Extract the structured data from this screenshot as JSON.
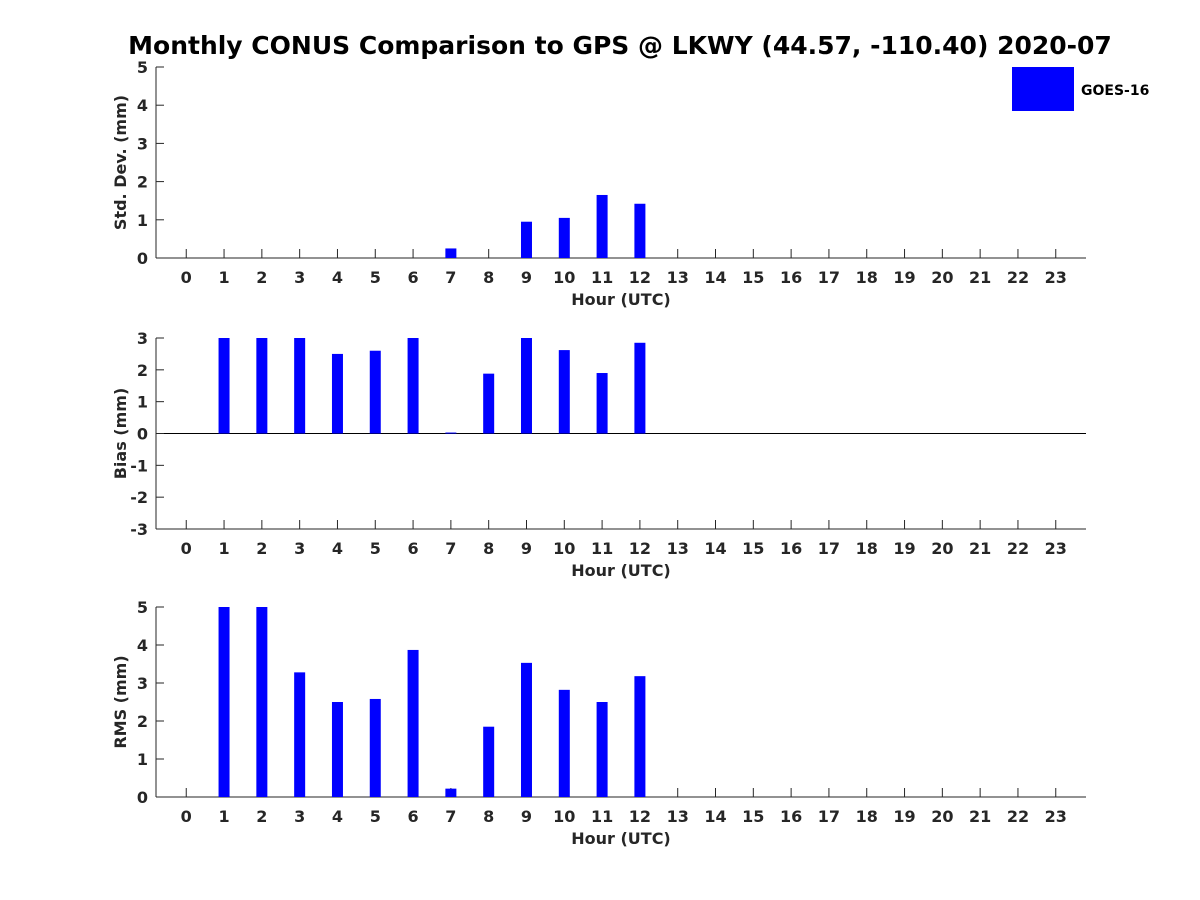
{
  "title": "Monthly CONUS Comparison to GPS @ LKWY (44.57, -110.40) 2020-07",
  "legend": {
    "label": "GOES-16",
    "color": "#0000ff",
    "position": "top-right"
  },
  "chart_data": [
    {
      "type": "bar",
      "name": "std-dev",
      "ylabel": "Std. Dev. (mm)",
      "xlabel": "Hour (UTC)",
      "ylim": [
        0,
        5
      ],
      "yticks": [
        0,
        1,
        2,
        3,
        4,
        5
      ],
      "grid": false,
      "x": [
        7,
        9,
        10,
        11,
        12
      ],
      "values": [
        0.25,
        0.95,
        1.05,
        1.65,
        1.42
      ],
      "color": "#0000ff"
    },
    {
      "type": "bar",
      "name": "bias",
      "ylabel": "Bias (mm)",
      "xlabel": "Hour (UTC)",
      "ylim": [
        -3,
        3
      ],
      "yticks": [
        -3,
        -2,
        -1,
        0,
        1,
        2,
        3
      ],
      "grid": false,
      "zero_line": true,
      "x": [
        1,
        2,
        3,
        4,
        5,
        6,
        7,
        8,
        9,
        10,
        11,
        12
      ],
      "values": [
        3.0,
        3.0,
        3.0,
        2.5,
        2.6,
        3.0,
        0.03,
        1.88,
        3.0,
        2.62,
        1.9,
        2.85
      ],
      "color": "#0000ff"
    },
    {
      "type": "bar",
      "name": "rms",
      "ylabel": "RMS (mm)",
      "xlabel": "Hour (UTC)",
      "ylim": [
        0,
        5
      ],
      "yticks": [
        0,
        1,
        2,
        3,
        4,
        5
      ],
      "grid": false,
      "x": [
        1,
        2,
        3,
        4,
        5,
        6,
        7,
        8,
        9,
        10,
        11,
        12
      ],
      "values": [
        5.0,
        5.0,
        3.28,
        2.5,
        2.58,
        3.87,
        0.22,
        1.85,
        3.53,
        2.82,
        2.5,
        3.18
      ],
      "color": "#0000ff"
    }
  ],
  "xticks": [
    0,
    1,
    2,
    3,
    4,
    5,
    6,
    7,
    8,
    9,
    10,
    11,
    12,
    13,
    14,
    15,
    16,
    17,
    18,
    19,
    20,
    21,
    22,
    23
  ],
  "xlim": [
    -0.8,
    23.8
  ]
}
